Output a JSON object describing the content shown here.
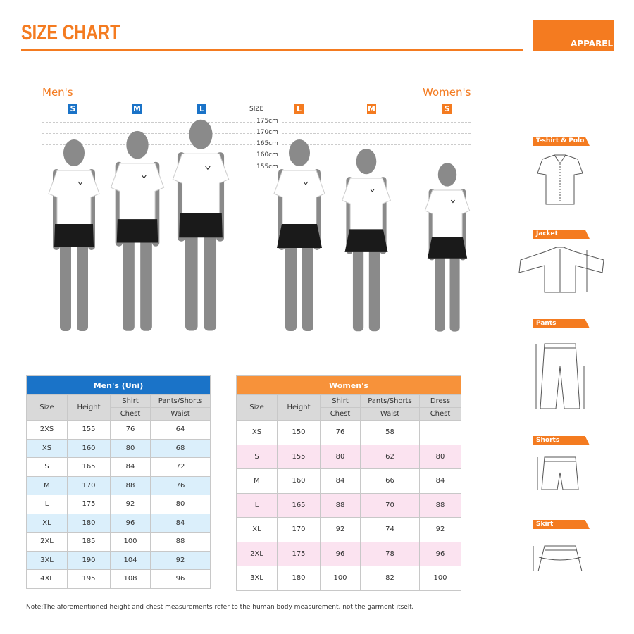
{
  "header": {
    "title": "SIZE CHART",
    "category": "APPAREL"
  },
  "figures": {
    "mens_label": "Men's",
    "womens_label": "Women's",
    "size_label": "SIZE",
    "mens_sizes": [
      "S",
      "M",
      "L"
    ],
    "womens_sizes": [
      "L",
      "M",
      "S"
    ],
    "heights": [
      "175cm",
      "170cm",
      "165cm",
      "160cm",
      "155cm"
    ]
  },
  "colors": {
    "accent": "#f47b20",
    "mens": "#1a73c8",
    "mens_row": "#dbeffb",
    "womens_header": "#f7923a",
    "womens_row": "#fbe3f0"
  },
  "mens_table": {
    "title": "Men's (Uni)",
    "headers": {
      "size": "Size",
      "height": "Height",
      "shirt": "Shirt",
      "pants": "Pants/Shorts",
      "chest": "Chest",
      "waist": "Waist"
    },
    "rows": [
      [
        "2XS",
        "155",
        "76",
        "64"
      ],
      [
        "XS",
        "160",
        "80",
        "68"
      ],
      [
        "S",
        "165",
        "84",
        "72"
      ],
      [
        "M",
        "170",
        "88",
        "76"
      ],
      [
        "L",
        "175",
        "92",
        "80"
      ],
      [
        "XL",
        "180",
        "96",
        "84"
      ],
      [
        "2XL",
        "185",
        "100",
        "88"
      ],
      [
        "3XL",
        "190",
        "104",
        "92"
      ],
      [
        "4XL",
        "195",
        "108",
        "96"
      ]
    ]
  },
  "womens_table": {
    "title": "Women's",
    "headers": {
      "size": "Size",
      "height": "Height",
      "shirt": "Shirt",
      "pants": "Pants/Shorts",
      "dress": "Dress",
      "chest": "Chest",
      "waist": "Waist",
      "dress_chest": "Chest"
    },
    "rows": [
      [
        "XS",
        "150",
        "76",
        "58",
        ""
      ],
      [
        "S",
        "155",
        "80",
        "62",
        "80"
      ],
      [
        "M",
        "160",
        "84",
        "66",
        "84"
      ],
      [
        "L",
        "165",
        "88",
        "70",
        "88"
      ],
      [
        "XL",
        "170",
        "92",
        "74",
        "92"
      ],
      [
        "2XL",
        "175",
        "96",
        "78",
        "96"
      ],
      [
        "3XL",
        "180",
        "100",
        "82",
        "100"
      ]
    ]
  },
  "diagrams": [
    {
      "label": "T-shirt & Polo"
    },
    {
      "label": "Jacket"
    },
    {
      "label": "Pants"
    },
    {
      "label": "Shorts"
    },
    {
      "label": "Skirt"
    }
  ],
  "note": "Note:The aforementioned height and chest measurements refer to the human body measurement, not the garment itself."
}
